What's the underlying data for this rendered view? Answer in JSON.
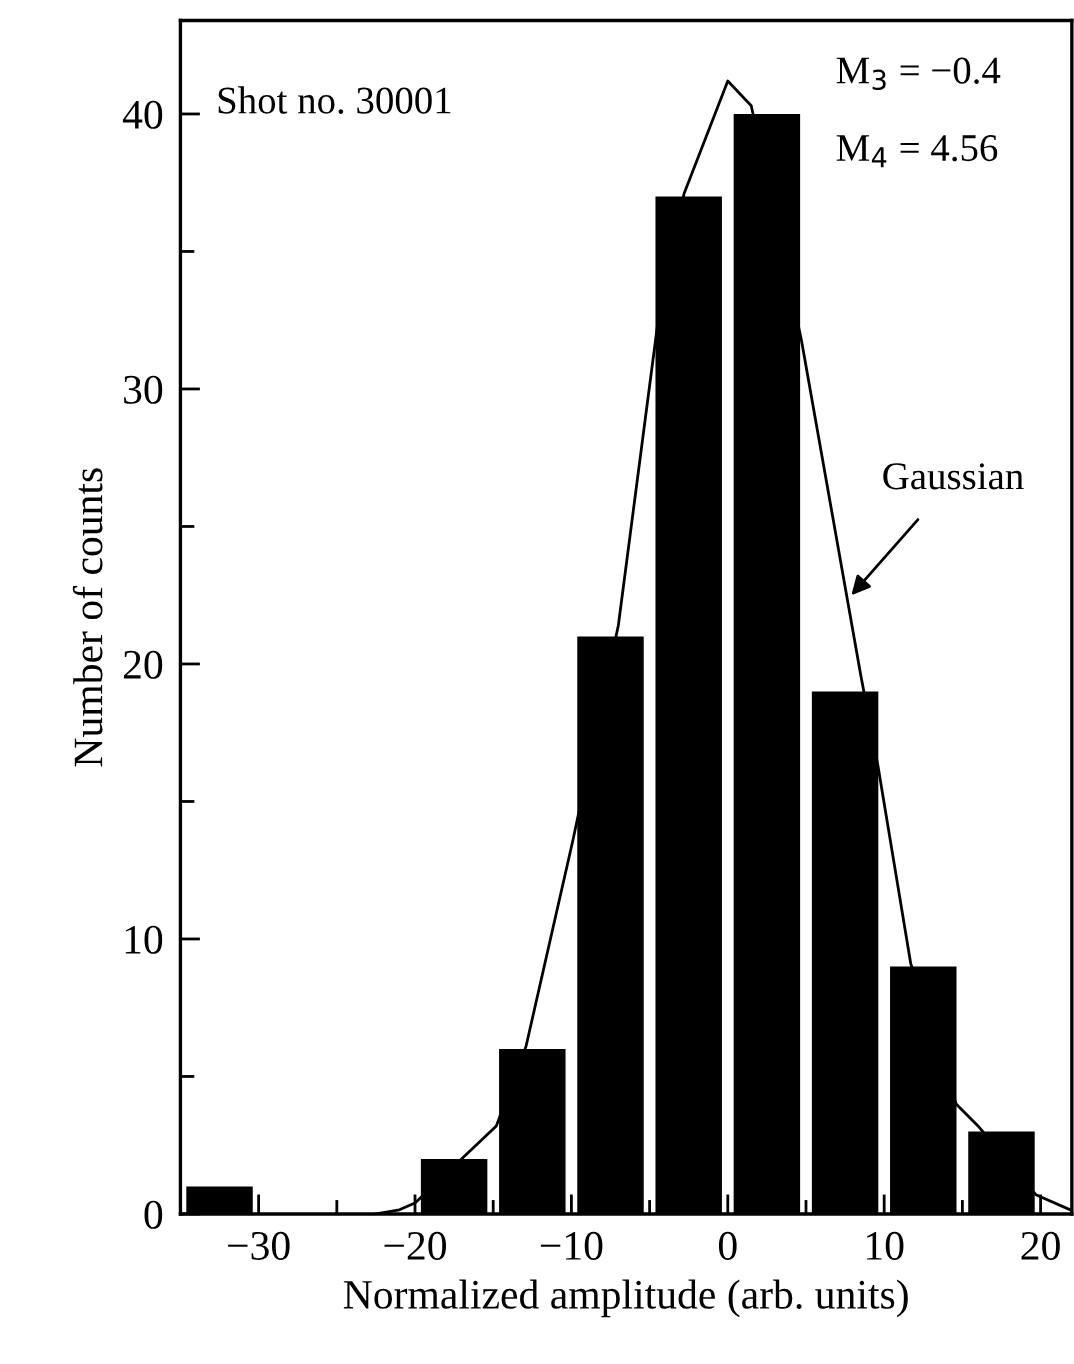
{
  "chart_data": {
    "type": "histogram",
    "xlabel": "Normalized amplitude (arb. units)",
    "ylabel": "Number of counts",
    "bins": [
      -35,
      -30,
      -25,
      -20,
      -15,
      -10,
      -5,
      0,
      5,
      10,
      15,
      20
    ],
    "values": [
      1,
      0,
      0,
      2,
      6,
      21,
      37,
      40,
      19,
      9,
      3
    ],
    "color": "#000000",
    "series": [
      {
        "type": "line",
        "color": "#000000",
        "x": [
          -22.5,
          -21,
          -20,
          -14.8,
          -12.9,
          -9.9,
          -7,
          -4.5,
          -2.8,
          0,
          1.5,
          4.7,
          8.5,
          9.6,
          11.7,
          14.6,
          16,
          19.7,
          21.9
        ],
        "values": [
          0,
          0.15,
          0.4,
          3.2,
          6.1,
          13.6,
          21.4,
          32.3,
          37.1,
          41.2,
          40.3,
          31.8,
          19.6,
          16.3,
          9.1,
          4.0,
          3.2,
          0.7,
          0.15
        ]
      }
    ],
    "annotations": [
      "Shot no. 30001",
      "M$_{3}$ = −0.4",
      "M$_{4}$ = 4.56",
      {
        "text": "Gaussian",
        "x": 7.9,
        "y": 22.5
      }
    ],
    "xlim": [
      -35,
      22
    ],
    "ylim": [
      0,
      43.4
    ],
    "xticks": [
      -30,
      {
        "value": -25,
        "label": null
      },
      -20,
      {
        "value": -15,
        "label": null
      },
      -10,
      {
        "value": -5,
        "label": null
      },
      0,
      {
        "value": 5,
        "label": null
      },
      10,
      {
        "value": 15,
        "label": null
      },
      20
    ],
    "yticks": [
      0,
      {
        "value": 5,
        "label": null
      },
      10,
      {
        "value": 15,
        "label": null
      },
      20,
      {
        "value": 25,
        "label": null
      },
      30,
      {
        "value": 35,
        "label": null
      },
      40
    ],
    "grid": false,
    "legend": false
  }
}
